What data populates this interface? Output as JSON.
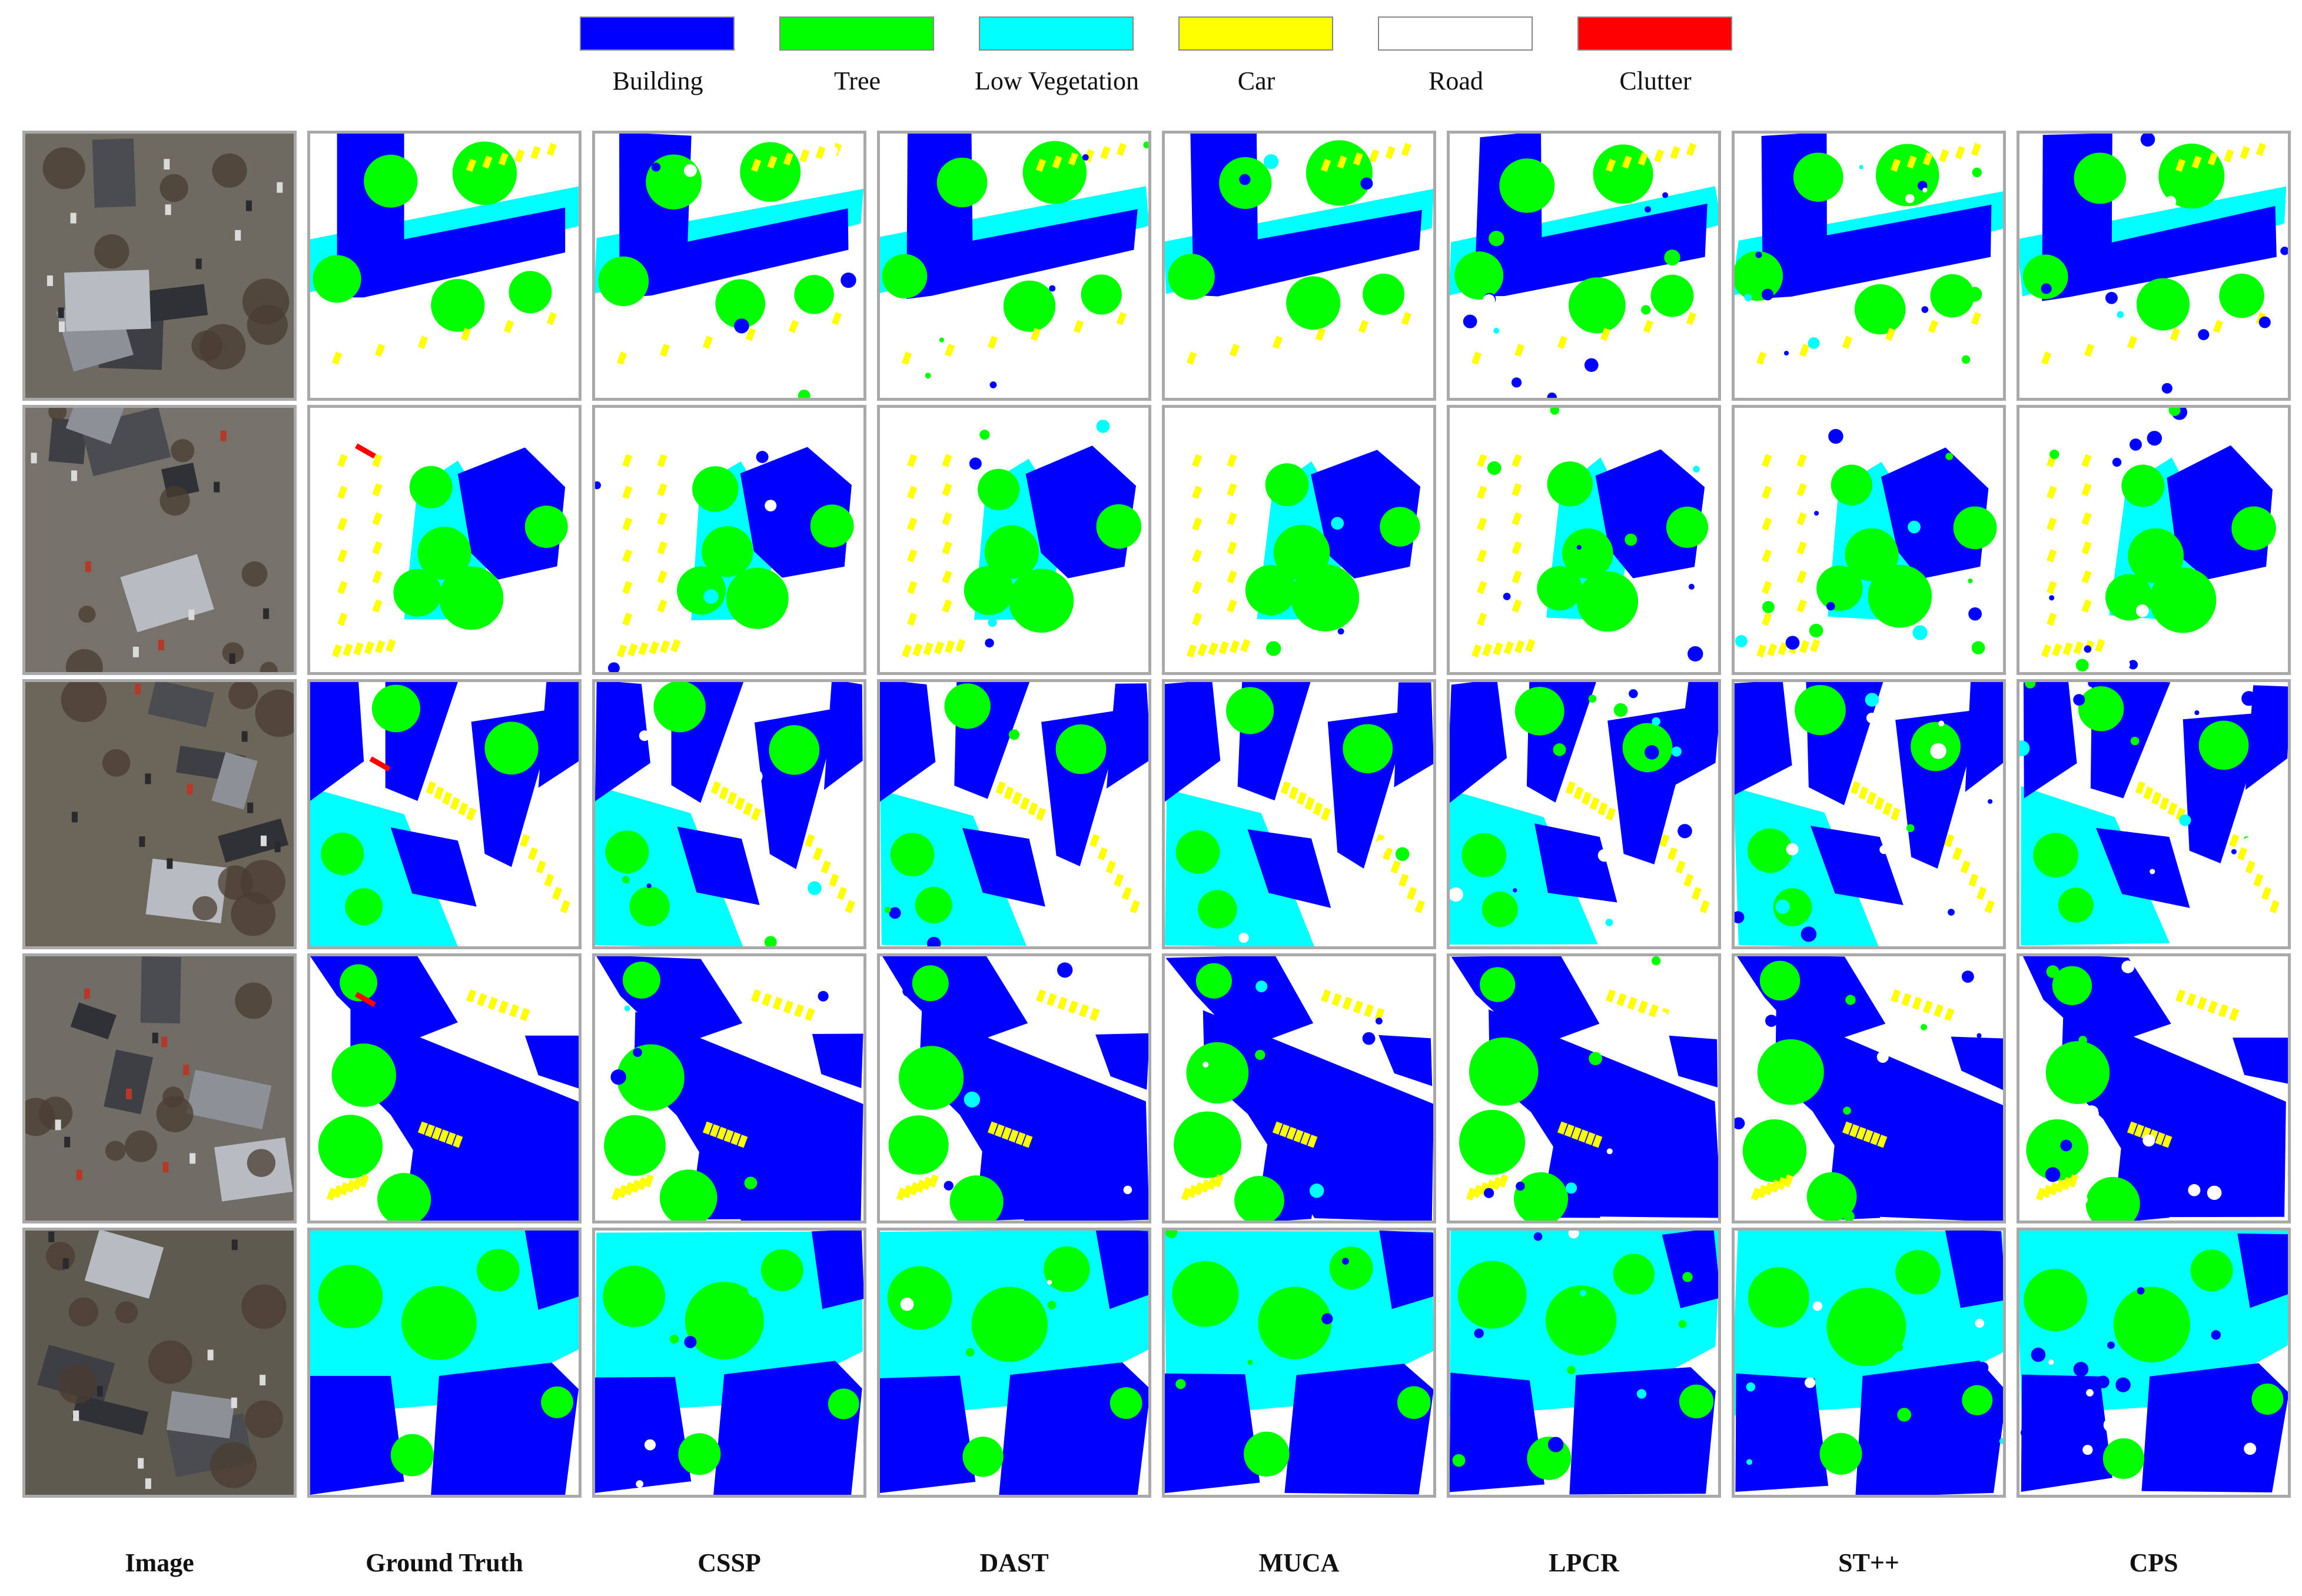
{
  "legend": [
    {
      "label": "Building",
      "color": "#0000ff"
    },
    {
      "label": "Tree",
      "color": "#00ff00"
    },
    {
      "label": "Low Vegetation",
      "color": "#00ffff"
    },
    {
      "label": "Car",
      "color": "#ffff00"
    },
    {
      "label": "Road",
      "color": "#ffffff"
    },
    {
      "label": "Clutter",
      "color": "#ff0000"
    }
  ],
  "columns": [
    "Image",
    "Ground Truth",
    "CSSP",
    "DAST",
    "MUCA",
    "LPCR",
    "ST++",
    "CPS"
  ],
  "rows": 5
}
